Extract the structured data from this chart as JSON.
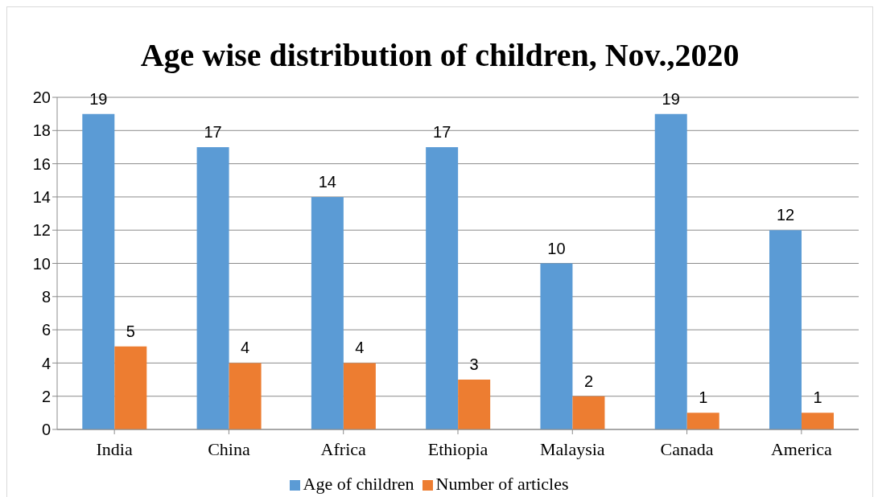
{
  "chart_data": {
    "type": "bar",
    "title": "Age wise distribution of children, Nov.,2020",
    "categories": [
      "India",
      "China",
      "Africa",
      "Ethiopia",
      "Malaysia",
      "Canada",
      "America"
    ],
    "series": [
      {
        "name": "Age of children",
        "color": "#5b9bd5",
        "values": [
          19,
          17,
          14,
          17,
          10,
          19,
          12
        ]
      },
      {
        "name": "Number of articles",
        "color": "#ed7d31",
        "values": [
          5,
          4,
          4,
          3,
          2,
          1,
          1
        ]
      }
    ],
    "ylim": [
      0,
      20
    ],
    "yticks": [
      0,
      2,
      4,
      6,
      8,
      10,
      12,
      14,
      16,
      18,
      20
    ],
    "grid": "y",
    "legend": "bottom",
    "data_labels": true
  }
}
